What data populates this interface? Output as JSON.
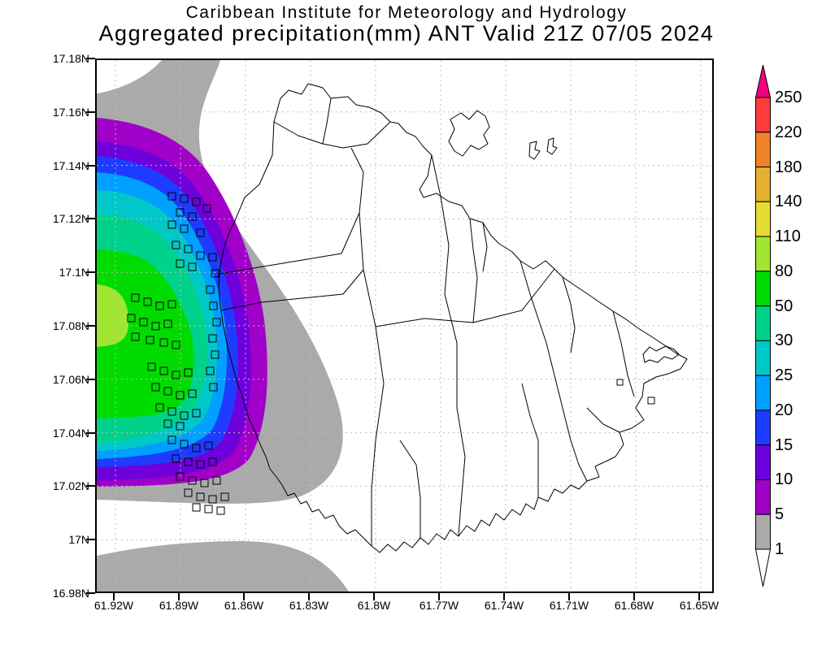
{
  "title": {
    "line1": "Caribbean Institute for Meteorology and Hydrology",
    "line2": "Aggregated precipitation(mm) ANT Valid 21Z 07/05 2024"
  },
  "axes": {
    "x_ticks": [
      "61.92W",
      "61.89W",
      "61.86W",
      "61.83W",
      "61.8W",
      "61.77W",
      "61.74W",
      "61.71W",
      "61.68W",
      "61.65W"
    ],
    "y_ticks": [
      "17.18N",
      "17.16N",
      "17.14N",
      "17.12N",
      "17.1N",
      "17.08N",
      "17.06N",
      "17.04N",
      "17.02N",
      "17N",
      "16.98N"
    ]
  },
  "colorbar": {
    "tick_labels": [
      "250",
      "220",
      "180",
      "140",
      "110",
      "80",
      "50",
      "30",
      "25",
      "20",
      "15",
      "10",
      "5",
      "1"
    ],
    "segment_colors_top_to_bottom": [
      "#FA3C3C",
      "#F08228",
      "#E6AF2D",
      "#E6DC32",
      "#A0E632",
      "#00DC00",
      "#00D28C",
      "#00C8C8",
      "#00A0FF",
      "#1E3CFF",
      "#6E00DC",
      "#A000C8",
      "#AAAAAA"
    ],
    "over_color": "#F00082",
    "under_color": "#FFFFFF"
  },
  "chart_data": {
    "type": "heatmap",
    "subtype": "filled-contour precipitation map (GrADS style)",
    "title": "Aggregated precipitation(mm) ANT Valid 21Z 07/05 2024",
    "institution": "Caribbean Institute for Meteorology and Hydrology",
    "region": "ANT (Antigua)",
    "valid_time": "21Z 07/05 2024",
    "units": "mm",
    "xlabel_ticks": [
      "61.92W",
      "61.89W",
      "61.86W",
      "61.83W",
      "61.8W",
      "61.77W",
      "61.74W",
      "61.71W",
      "61.68W",
      "61.65W"
    ],
    "ylabel_ticks": [
      "17.18N",
      "17.16N",
      "17.14N",
      "17.12N",
      "17.1N",
      "17.08N",
      "17.06N",
      "17.04N",
      "17.02N",
      "17N",
      "16.98N"
    ],
    "xlim_approx": [
      "61.93W",
      "61.64W"
    ],
    "ylim_approx": [
      "16.975N",
      "17.185N"
    ],
    "grid": "dotted gridlines at every labeled tick",
    "contour_levels_mm": [
      1,
      5,
      10,
      15,
      20,
      25,
      30,
      50,
      80,
      110,
      140,
      180,
      220,
      250
    ],
    "band_colors": {
      "under_1": "#FFFFFF",
      "1_5": "#AAAAAA",
      "5_10": "#A000C8",
      "10_15": "#6E00DC",
      "15_20": "#1E3CFF",
      "20_25": "#00A0FF",
      "25_30": "#00C8C8",
      "30_50": "#00D28C",
      "50_80": "#00DC00",
      "80_110": "#A0E632",
      "110_140": "#E6DC32",
      "140_180": "#E6AF2D",
      "180_220": "#F08228",
      "220_250": "#FA3C3C",
      "over_250": "#F00082"
    },
    "depicted_field": {
      "description": "Concentric precipitation maximum centered just west of Antigua (off the left plot edge near 61.93W, 17.085N), with bands decreasing outward; island interior mostly below 1 mm",
      "maximum_band_mm": "80-110",
      "maximum_location": "west of the island, approx 61.93W 17.08N-17.10N",
      "secondary_features": [
        "gray 1-5 mm band along upper-left/top edge of map",
        "gray 1-5 mm band along bottom-left edge of map",
        "5-30 mm bands overlapping the west coast of Antigua"
      ],
      "legend_position": "vertical colorbar at right with over/under arrow triangles"
    }
  }
}
